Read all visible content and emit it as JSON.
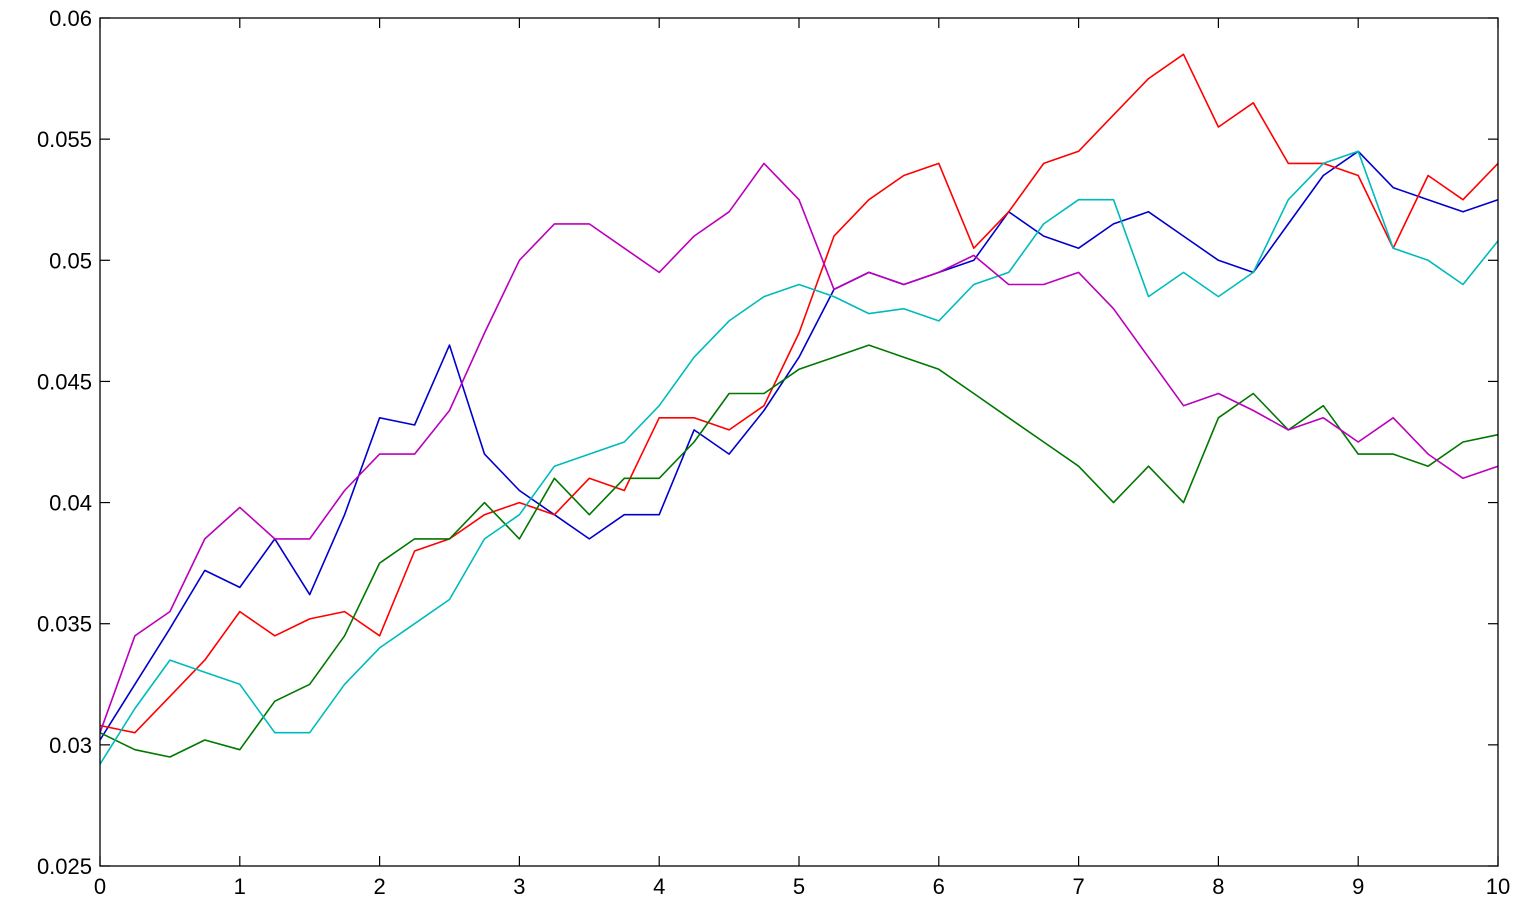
{
  "chart_data": {
    "type": "line",
    "title": "",
    "xlabel": "",
    "ylabel": "",
    "xlim": [
      0,
      10
    ],
    "ylim": [
      0.025,
      0.06
    ],
    "xticks": [
      "0",
      "1",
      "2",
      "3",
      "4",
      "5",
      "6",
      "7",
      "8",
      "9",
      "10"
    ],
    "yticks": [
      "0.025",
      "0.03",
      "0.035",
      "0.04",
      "0.045",
      "0.05",
      "0.055",
      "0.06"
    ],
    "grid": false,
    "legend": "none",
    "x": [
      0,
      0.25,
      0.5,
      0.75,
      1,
      1.25,
      1.5,
      1.75,
      2,
      2.25,
      2.5,
      2.75,
      3,
      3.25,
      3.5,
      3.75,
      4,
      4.25,
      4.5,
      4.75,
      5,
      5.25,
      5.5,
      5.75,
      6,
      6.25,
      6.5,
      6.75,
      7,
      7.25,
      7.5,
      7.75,
      8,
      8.25,
      8.5,
      8.75,
      9,
      9.25,
      9.5,
      9.75,
      10
    ],
    "series": [
      {
        "color": "#0000cc",
        "values": [
          0.0302,
          0.0325,
          0.0348,
          0.0372,
          0.0365,
          0.0385,
          0.0362,
          0.0395,
          0.0435,
          0.0432,
          0.0465,
          0.042,
          0.0405,
          0.0395,
          0.0385,
          0.0395,
          0.0395,
          0.043,
          0.042,
          0.0438,
          0.046,
          0.0488,
          0.0495,
          0.049,
          0.0495,
          0.05,
          0.052,
          0.051,
          0.0505,
          0.0515,
          0.052,
          0.051,
          0.05,
          0.0495,
          0.0515,
          0.0535,
          0.0545,
          0.053,
          0.0525,
          0.052,
          0.0525
        ]
      },
      {
        "color": "#ff0000",
        "values": [
          0.0308,
          0.0305,
          0.032,
          0.0335,
          0.0355,
          0.0345,
          0.0352,
          0.0355,
          0.0345,
          0.038,
          0.0385,
          0.0395,
          0.04,
          0.0395,
          0.041,
          0.0405,
          0.0435,
          0.0435,
          0.043,
          0.044,
          0.047,
          0.051,
          0.0525,
          0.0535,
          0.054,
          0.0505,
          0.052,
          0.054,
          0.0545,
          0.056,
          0.0575,
          0.0585,
          0.0555,
          0.0565,
          0.054,
          0.054,
          0.0535,
          0.0505,
          0.0535,
          0.0525,
          0.054
        ]
      },
      {
        "color": "#007700",
        "values": [
          0.0305,
          0.0298,
          0.0295,
          0.0302,
          0.0298,
          0.0318,
          0.0325,
          0.0345,
          0.0375,
          0.0385,
          0.0385,
          0.04,
          0.0385,
          0.041,
          0.0395,
          0.041,
          0.041,
          0.0425,
          0.0445,
          0.0445,
          0.0455,
          0.046,
          0.0465,
          0.046,
          0.0455,
          0.0445,
          0.0435,
          0.0425,
          0.0415,
          0.04,
          0.0415,
          0.04,
          0.0435,
          0.0445,
          0.043,
          0.044,
          0.042,
          0.042,
          0.0415,
          0.0425,
          0.0428
        ]
      },
      {
        "color": "#00bbbb",
        "values": [
          0.0292,
          0.0315,
          0.0335,
          0.033,
          0.0325,
          0.0305,
          0.0305,
          0.0325,
          0.034,
          0.035,
          0.036,
          0.0385,
          0.0395,
          0.0415,
          0.042,
          0.0425,
          0.044,
          0.046,
          0.0475,
          0.0485,
          0.049,
          0.0485,
          0.0478,
          0.048,
          0.0475,
          0.049,
          0.0495,
          0.0515,
          0.0525,
          0.0525,
          0.0485,
          0.0495,
          0.0485,
          0.0495,
          0.0525,
          0.054,
          0.0545,
          0.0505,
          0.05,
          0.049,
          0.0508
        ]
      },
      {
        "color": "#bb00bb",
        "values": [
          0.0305,
          0.0345,
          0.0355,
          0.0385,
          0.0398,
          0.0385,
          0.0385,
          0.0405,
          0.042,
          0.042,
          0.0438,
          0.047,
          0.05,
          0.0515,
          0.0515,
          0.0505,
          0.0495,
          0.051,
          0.052,
          0.054,
          0.0525,
          0.0488,
          0.0495,
          0.049,
          0.0495,
          0.0502,
          0.049,
          0.049,
          0.0495,
          0.048,
          0.046,
          0.044,
          0.0445,
          0.0438,
          0.043,
          0.0435,
          0.0425,
          0.0435,
          0.042,
          0.041,
          0.0415
        ]
      }
    ]
  }
}
